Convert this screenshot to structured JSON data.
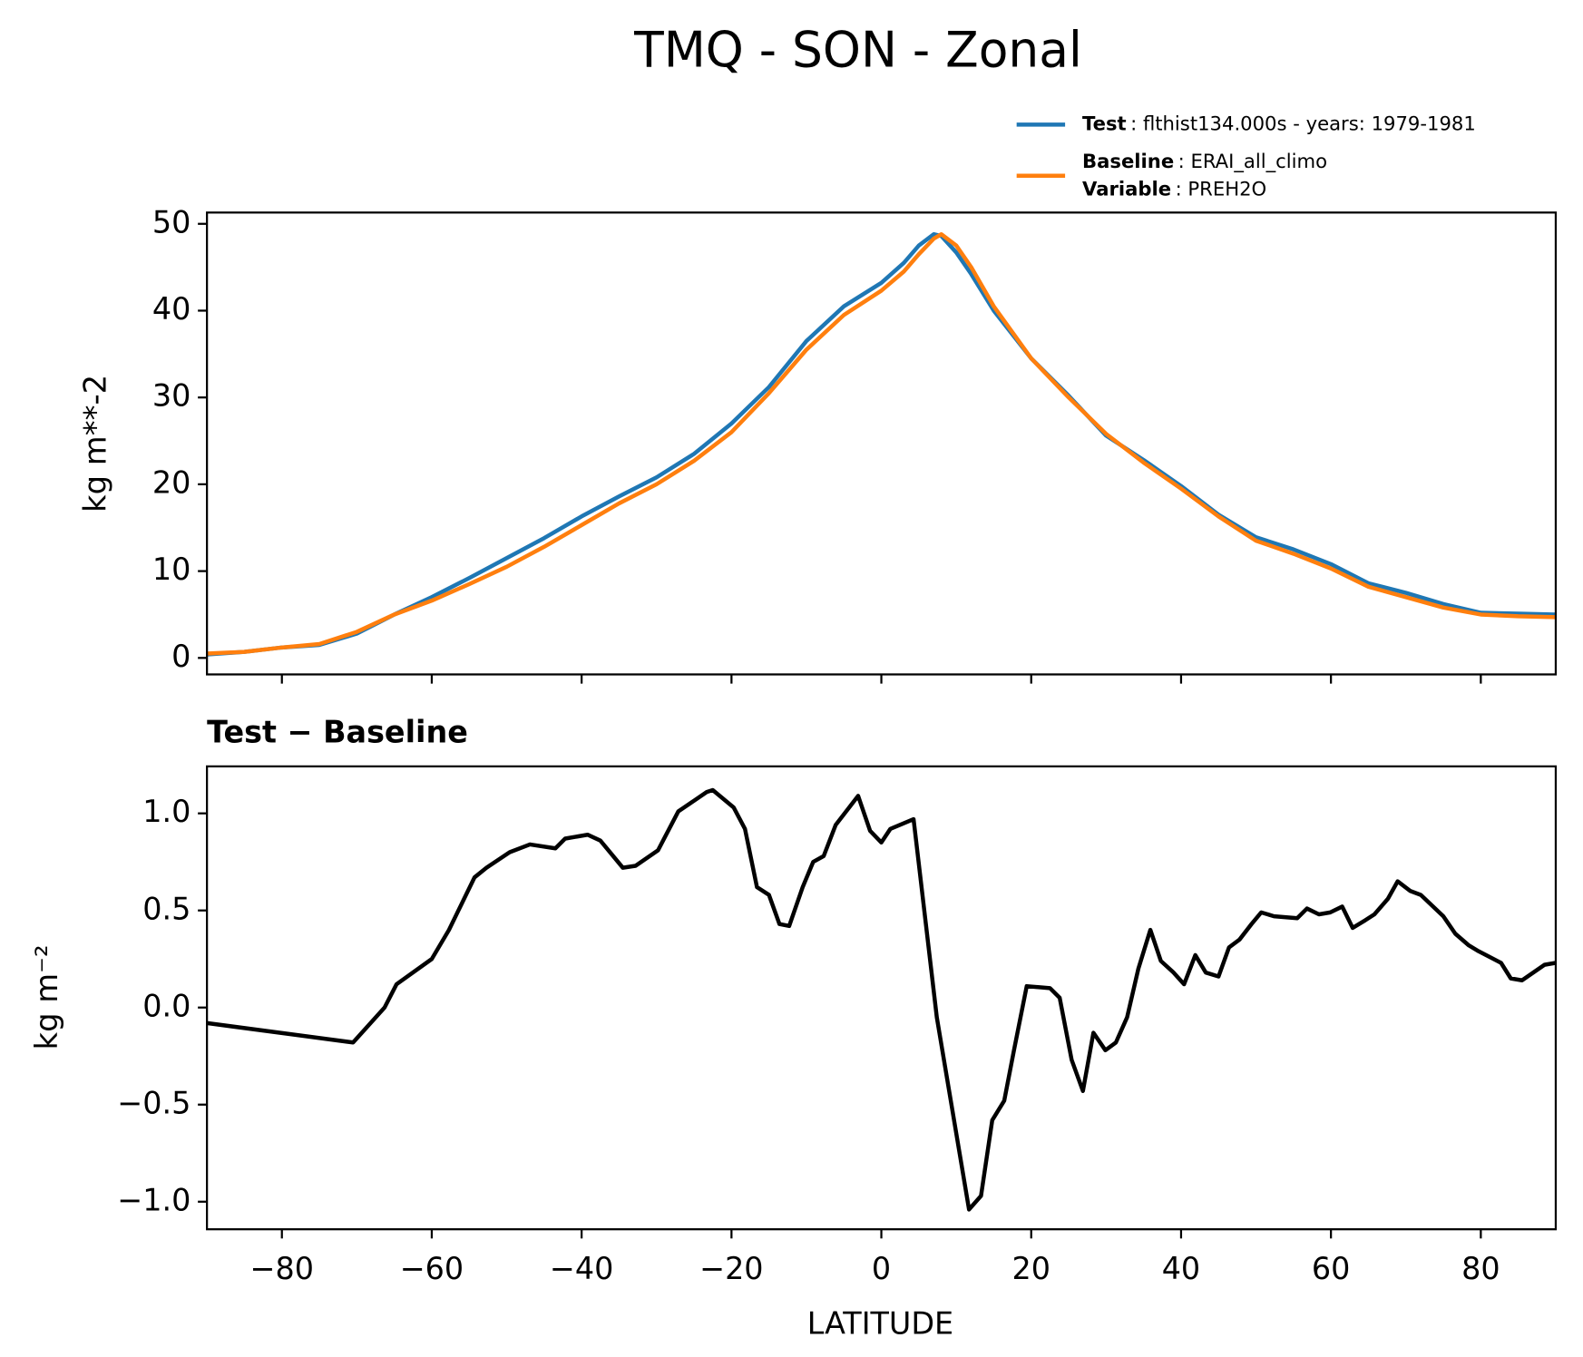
{
  "chart_data": [
    {
      "type": "line",
      "title": "TMQ - SON - Zonal",
      "y_label": "kg m**-2",
      "x": [
        -90,
        -85,
        -80,
        -75,
        -70,
        -65,
        -60,
        -55,
        -50,
        -45,
        -40,
        -35,
        -30,
        -25,
        -20,
        -15,
        -10,
        -5,
        0,
        3,
        5,
        7,
        8,
        10,
        12,
        15,
        20,
        25,
        30,
        35,
        40,
        45,
        50,
        55,
        60,
        65,
        70,
        75,
        80,
        85,
        90
      ],
      "series": [
        {
          "name": "Test",
          "detail": ": flthist134.000s - years: 1979-1981",
          "color": "#1f77b4",
          "values": [
            0.4,
            0.7,
            1.2,
            1.5,
            2.8,
            5,
            7,
            9.2,
            11.5,
            13.8,
            16.3,
            18.6,
            20.8,
            23.5,
            27,
            31.2,
            36.5,
            40.5,
            43.2,
            45.5,
            47.5,
            48.8,
            48.6,
            46.7,
            44.2,
            40,
            34.5,
            30.2,
            25.6,
            22.8,
            19.8,
            16.5,
            13.9,
            12.5,
            10.8,
            8.6,
            7.5,
            6.2,
            5.2,
            5.1,
            5
          ]
        },
        {
          "name": "Baseline",
          "detail": ": ERAI_all_climo",
          "color": "#ff7f0e",
          "values": [
            0.5,
            0.7,
            1.2,
            1.6,
            3,
            5,
            6.6,
            8.5,
            10.5,
            12.8,
            15.3,
            17.8,
            20,
            22.7,
            26,
            30.5,
            35.5,
            39.5,
            42.3,
            44.5,
            46.5,
            48.3,
            48.8,
            47.5,
            45,
            40.5,
            34.5,
            30,
            25.8,
            22.5,
            19.5,
            16.3,
            13.5,
            12,
            10.3,
            8.2,
            7,
            5.8,
            5,
            4.8,
            4.7
          ]
        }
      ],
      "legend_extra": {
        "name": "Variable",
        "detail": ": PREH2O"
      },
      "xlim": [
        -90,
        90
      ],
      "xticks": [
        -80,
        -60,
        -40,
        -20,
        0,
        20,
        40,
        60,
        80
      ],
      "ylim": [
        -1.9,
        51.3
      ],
      "yticks": [
        0,
        10,
        20,
        30,
        40,
        50
      ]
    },
    {
      "type": "line",
      "title": "Test − Baseline",
      "x_label": "LATITUDE",
      "y_label": "kg m⁻²",
      "x": [
        -90,
        -70.5,
        -66.3,
        -64.7,
        -60,
        -57.7,
        -54.3,
        -52.7,
        -49.6,
        -46.9,
        -43.5,
        -42.2,
        -39.2,
        -37.5,
        -34.5,
        -32.8,
        -29.8,
        -27.1,
        -23.3,
        -22.5,
        -19.7,
        -18.2,
        -16.6,
        -15,
        -13.6,
        -12.3,
        -10.5,
        -9.1,
        -7.7,
        -6.1,
        -3.1,
        -1.5,
        0,
        1.2,
        4.3,
        7.4,
        11.7,
        13.3,
        14.8,
        16.4,
        17.7,
        19.4,
        22.5,
        23.8,
        25.4,
        26.9,
        28.3,
        29.9,
        31.3,
        32.8,
        34.3,
        35.9,
        37.3,
        39,
        40.4,
        41.9,
        43.3,
        45,
        46.4,
        47.8,
        49.4,
        50.7,
        52.4,
        55.5,
        56.8,
        58.4,
        59.9,
        61.5,
        62.9,
        64.6,
        65.8,
        67.6,
        68.9,
        70.6,
        72,
        75,
        76.6,
        78.4,
        79.7,
        82.7,
        84,
        85.5,
        88.5,
        90
      ],
      "series": [
        {
          "name": "Test − Baseline",
          "color": "#000000",
          "values": [
            -0.08,
            -0.18,
            0,
            0.12,
            0.25,
            0.4,
            0.67,
            0.72,
            0.8,
            0.84,
            0.82,
            0.87,
            0.89,
            0.86,
            0.72,
            0.73,
            0.81,
            1.01,
            1.11,
            1.12,
            1.03,
            0.92,
            0.62,
            0.58,
            0.43,
            0.42,
            0.62,
            0.75,
            0.78,
            0.94,
            1.09,
            0.91,
            0.85,
            0.92,
            0.97,
            -0.05,
            -1.04,
            -0.97,
            -0.58,
            -0.48,
            -0.22,
            0.11,
            0.1,
            0.05,
            -0.27,
            -0.43,
            -0.13,
            -0.22,
            -0.18,
            -0.05,
            0.2,
            0.4,
            0.24,
            0.18,
            0.12,
            0.27,
            0.18,
            0.16,
            0.31,
            0.35,
            0.43,
            0.49,
            0.47,
            0.46,
            0.51,
            0.48,
            0.49,
            0.52,
            0.41,
            0.45,
            0.48,
            0.56,
            0.65,
            0.6,
            0.58,
            0.47,
            0.38,
            0.32,
            0.29,
            0.23,
            0.15,
            0.14,
            0.22,
            0.23
          ]
        }
      ],
      "xlim": [
        -90,
        90
      ],
      "xticks": [
        {
          "value": -80,
          "label": "−80"
        },
        {
          "value": -60,
          "label": "−60"
        },
        {
          "value": -40,
          "label": "−40"
        },
        {
          "value": -20,
          "label": "−20"
        },
        0,
        20,
        40,
        60,
        80
      ],
      "ylim": [
        -1.142,
        1.242
      ],
      "yticks": [
        {
          "value": -1,
          "label": "−1.0"
        },
        {
          "value": -0.5,
          "label": "−0.5"
        },
        {
          "value": 0,
          "label": "0.0"
        },
        0.5,
        {
          "value": 1,
          "label": "1.0"
        }
      ]
    }
  ]
}
